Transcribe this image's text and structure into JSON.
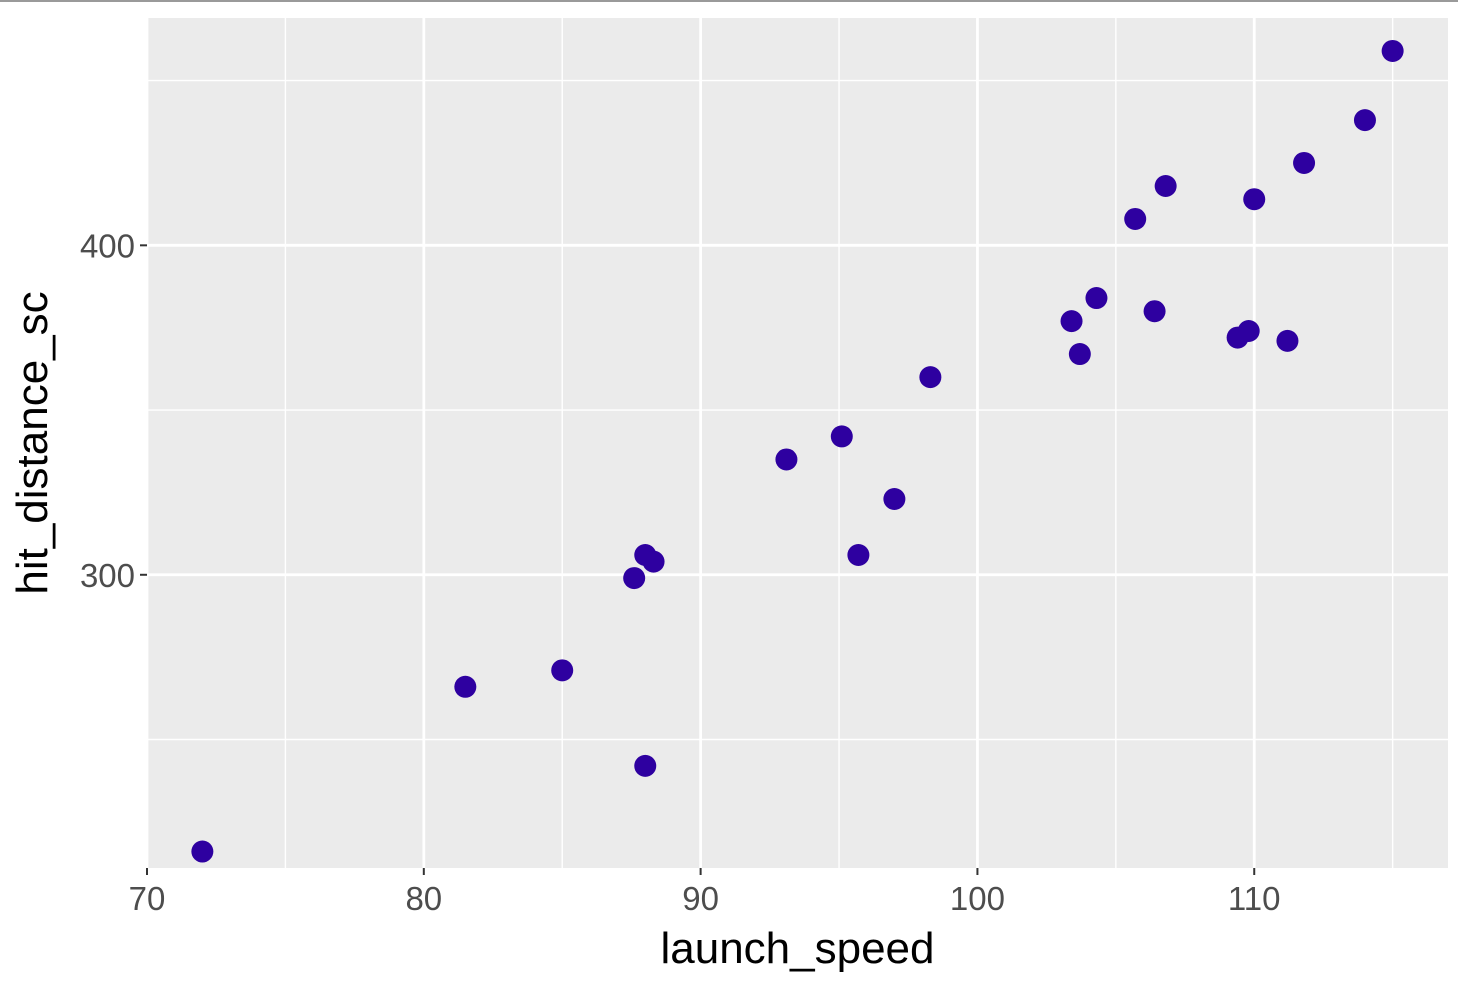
{
  "chart_data": {
    "type": "scatter",
    "xlabel": "launch_speed",
    "ylabel": "hit_distance_sc",
    "xlim": [
      70,
      117
    ],
    "ylim": [
      211,
      469
    ],
    "x_ticks": [
      70,
      80,
      90,
      100,
      110
    ],
    "y_ticks": [
      300,
      400
    ],
    "x_minor_ticks": [
      75,
      85,
      95,
      105,
      115
    ],
    "y_minor_ticks": [
      250,
      350,
      450
    ],
    "grid": true,
    "legend": "none",
    "colors": {
      "panel": "#ebebeb",
      "grid": "#ffffff",
      "point": "#2e00a0",
      "tick_mark": "#333333"
    },
    "points": [
      {
        "x": 72.0,
        "y": 216
      },
      {
        "x": 81.5,
        "y": 266
      },
      {
        "x": 85.0,
        "y": 271
      },
      {
        "x": 87.6,
        "y": 299
      },
      {
        "x": 88.0,
        "y": 306
      },
      {
        "x": 88.3,
        "y": 304
      },
      {
        "x": 88.0,
        "y": 242
      },
      {
        "x": 93.1,
        "y": 335
      },
      {
        "x": 95.1,
        "y": 342
      },
      {
        "x": 95.7,
        "y": 306
      },
      {
        "x": 97.0,
        "y": 323
      },
      {
        "x": 98.3,
        "y": 360
      },
      {
        "x": 103.4,
        "y": 377
      },
      {
        "x": 103.7,
        "y": 367
      },
      {
        "x": 104.3,
        "y": 384
      },
      {
        "x": 105.7,
        "y": 408
      },
      {
        "x": 106.4,
        "y": 380
      },
      {
        "x": 106.8,
        "y": 418
      },
      {
        "x": 109.4,
        "y": 372
      },
      {
        "x": 109.8,
        "y": 374
      },
      {
        "x": 110.0,
        "y": 414
      },
      {
        "x": 111.2,
        "y": 371
      },
      {
        "x": 111.8,
        "y": 425
      },
      {
        "x": 114.0,
        "y": 438
      },
      {
        "x": 115.0,
        "y": 459
      }
    ]
  }
}
